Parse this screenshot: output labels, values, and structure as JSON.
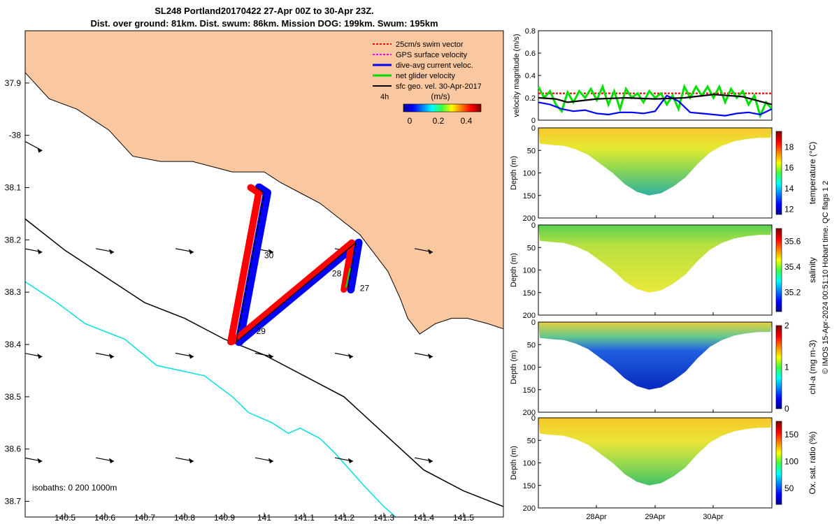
{
  "title": {
    "line1": "SL248 Portland20170422 27-Apr 00Z to 30-Apr 23Z.",
    "line2": "Dist. over ground: 81km. Dist. swum: 86km. Mission DOG: 199km. Swum: 195km"
  },
  "credit": "© IMOS 15-Apr-2024 00:51:10 Hobart time. QC flags 1  2",
  "colors": {
    "land": "#fac8a0",
    "swim_vector": "#ff0000",
    "gps_velocity": "#ff00ff",
    "dive_avg_current": "#0000ff",
    "net_glider_velocity": "#00e000",
    "sfc_geo_velocity": "#000000",
    "isobath_200": "#000000",
    "isobath_1000": "#00e0e0"
  },
  "chart_data": [
    {
      "type": "map",
      "xlim": [
        140.4,
        141.6
      ],
      "ylim": [
        -38.73,
        -37.8
      ],
      "x_ticks": [
        140.5,
        140.6,
        140.7,
        140.8,
        140.9,
        141.0,
        141.1,
        141.2,
        141.3,
        141.4,
        141.5
      ],
      "x_tick_labels": [
        "140.5",
        "140.6",
        "140.7",
        "140.8",
        "140.9",
        "141",
        "141.1",
        "141.2",
        "141.3",
        "141.4",
        "141.5"
      ],
      "y_ticks": [
        -37.9,
        -38.0,
        -38.1,
        -38.2,
        -38.3,
        -38.4,
        -38.5,
        -38.6,
        -38.7
      ],
      "y_tick_labels": [
        "37.9",
        "-38",
        "38.1",
        "38.2",
        "38.3",
        "38.4",
        "38.5",
        "38.6",
        "38.7"
      ],
      "legend": [
        {
          "label": "25cm/s swim vector",
          "color": "#ff0000"
        },
        {
          "label": "GPS surface velocity",
          "color": "#ff00ff"
        },
        {
          "label": "dive-avg current veloc.",
          "color": "#0000ff"
        },
        {
          "label": "net glider velocity",
          "color": "#00e000"
        },
        {
          "label": "sfc geo. vel. 30-Apr-2017",
          "color": "#000000"
        }
      ],
      "colorbar": {
        "label": "(m/s)",
        "tick_labels": [
          "0",
          "0.2",
          "0.4"
        ],
        "range": [
          0,
          0.5
        ]
      },
      "period_label": "4h",
      "isobath_label": "isobaths: 0   200  1000m",
      "day_labels": [
        {
          "text": "27",
          "lon": 141.24,
          "lat": -38.298
        },
        {
          "text": "28",
          "lon": 141.17,
          "lat": -38.27
        },
        {
          "text": "29",
          "lon": 140.98,
          "lat": -38.38
        },
        {
          "text": "30",
          "lon": 141.0,
          "lat": -38.235
        }
      ],
      "track": {
        "leg1": [
          [
            141.21,
            -38.295
          ],
          [
            141.23,
            -38.205
          ],
          [
            140.93,
            -38.395
          ]
        ],
        "leg2": [
          [
            140.93,
            -38.395
          ],
          [
            141.0,
            -38.11
          ],
          [
            140.98,
            -38.1
          ]
        ]
      },
      "coast": [
        [
          140.4,
          -37.88
        ],
        [
          140.46,
          -37.93
        ],
        [
          140.53,
          -37.95
        ],
        [
          140.61,
          -37.99
        ],
        [
          140.67,
          -38.04
        ],
        [
          140.74,
          -38.05
        ],
        [
          140.82,
          -38.05
        ],
        [
          140.87,
          -38.06
        ],
        [
          140.92,
          -38.07
        ],
        [
          140.96,
          -38.07
        ],
        [
          141.0,
          -38.07
        ],
        [
          141.04,
          -38.09
        ],
        [
          141.09,
          -38.11
        ],
        [
          141.14,
          -38.13
        ],
        [
          141.19,
          -38.16
        ],
        [
          141.24,
          -38.19
        ],
        [
          141.27,
          -38.22
        ],
        [
          141.31,
          -38.26
        ],
        [
          141.34,
          -38.31
        ],
        [
          141.36,
          -38.35
        ],
        [
          141.39,
          -38.38
        ],
        [
          141.43,
          -38.36
        ],
        [
          141.47,
          -38.35
        ],
        [
          141.51,
          -38.35
        ],
        [
          141.56,
          -38.36
        ],
        [
          141.6,
          -38.37
        ]
      ],
      "isobath_200": [
        [
          140.4,
          -38.16
        ],
        [
          140.5,
          -38.22
        ],
        [
          140.6,
          -38.27
        ],
        [
          140.7,
          -38.32
        ],
        [
          140.8,
          -38.35
        ],
        [
          140.9,
          -38.39
        ],
        [
          141.0,
          -38.42
        ],
        [
          141.1,
          -38.46
        ],
        [
          141.2,
          -38.5
        ],
        [
          141.3,
          -38.57
        ],
        [
          141.4,
          -38.64
        ],
        [
          141.5,
          -38.68
        ],
        [
          141.6,
          -38.71
        ]
      ],
      "isobath_1000": [
        [
          140.4,
          -38.28
        ],
        [
          140.48,
          -38.32
        ],
        [
          140.55,
          -38.36
        ],
        [
          140.65,
          -38.39
        ],
        [
          140.73,
          -38.44
        ],
        [
          140.85,
          -38.46
        ],
        [
          140.92,
          -38.5
        ],
        [
          140.96,
          -38.53
        ],
        [
          141.02,
          -38.55
        ],
        [
          141.06,
          -38.57
        ],
        [
          141.09,
          -38.56
        ],
        [
          141.14,
          -38.58
        ],
        [
          141.18,
          -38.61
        ],
        [
          141.25,
          -38.67
        ],
        [
          141.3,
          -38.71
        ],
        [
          141.36,
          -38.75
        ]
      ]
    },
    {
      "type": "line",
      "ylabel": "velocity magnitude (m/s)",
      "ylim": [
        0,
        0.8
      ],
      "y_ticks": [
        0,
        0.2,
        0.4,
        0.6,
        0.8
      ],
      "y_tick_labels": [
        "0",
        "0.2",
        "0.4",
        "0.6",
        "0.8"
      ],
      "xlim": [
        0,
        4
      ],
      "x_ticks": [
        1,
        2,
        3
      ],
      "x_tick_labels": [
        "28Apr",
        "29Apr",
        "30Apr"
      ],
      "series": [
        {
          "color": "#ff0000",
          "style": "dashed",
          "x": [
            0,
            4
          ],
          "y": [
            0.24,
            0.24
          ]
        },
        {
          "color": "#00e000",
          "x": [
            0,
            0.1,
            0.2,
            0.3,
            0.4,
            0.5,
            0.6,
            0.7,
            0.8,
            0.9,
            1.0,
            1.1,
            1.2,
            1.3,
            1.4,
            1.5,
            1.6,
            1.7,
            1.8,
            1.9,
            2.0,
            2.1,
            2.2,
            2.3,
            2.4,
            2.5,
            2.6,
            2.7,
            2.8,
            2.9,
            3.0,
            3.1,
            3.2,
            3.3,
            3.4,
            3.5,
            3.6,
            3.7,
            3.8,
            3.9,
            4.0
          ],
          "y": [
            0.3,
            0.2,
            0.26,
            0.14,
            0.08,
            0.25,
            0.16,
            0.26,
            0.2,
            0.28,
            0.18,
            0.3,
            0.14,
            0.26,
            0.1,
            0.28,
            0.2,
            0.24,
            0.16,
            0.26,
            0.2,
            0.24,
            0.14,
            0.22,
            0.1,
            0.3,
            0.2,
            0.3,
            0.22,
            0.3,
            0.2,
            0.3,
            0.16,
            0.28,
            0.2,
            0.26,
            0.14,
            0.22,
            0.04,
            0.16,
            0.1
          ]
        },
        {
          "color": "#0000ff",
          "x": [
            0,
            0.2,
            0.4,
            0.6,
            0.8,
            1.0,
            1.2,
            1.4,
            1.6,
            1.8,
            2.0,
            2.2,
            2.4,
            2.6,
            2.8,
            3.0,
            3.2,
            3.4,
            3.6,
            3.8,
            4.0
          ],
          "y": [
            0.16,
            0.14,
            0.1,
            0.08,
            0.09,
            0.06,
            0.05,
            0.07,
            0.07,
            0.06,
            0.08,
            0.22,
            0.17,
            0.07,
            0.06,
            0.05,
            0.04,
            0.06,
            0.07,
            0.05,
            0.1
          ]
        },
        {
          "color": "#000000",
          "x": [
            0,
            0.3,
            0.5,
            1.0,
            1.5,
            2.0,
            2.5,
            3.0,
            3.5,
            4.0
          ],
          "y": [
            0.2,
            0.19,
            0.16,
            0.19,
            0.2,
            0.19,
            0.2,
            0.23,
            0.21,
            0.14
          ]
        }
      ]
    },
    {
      "type": "heatmap",
      "ylabel": "Depth (m)",
      "ylim": [
        200,
        0
      ],
      "y_tick_labels": [
        "0",
        "50",
        "100",
        "150",
        "200"
      ],
      "colorbar": {
        "label": "temperature (°C)",
        "tick_labels": [
          "12",
          "14",
          "16",
          "18"
        ],
        "range": [
          11.5,
          19.5
        ]
      },
      "seabed_depth_m": [
        35,
        38,
        40,
        48,
        60,
        80,
        100,
        125,
        142,
        150,
        145,
        130,
        110,
        80,
        55,
        40,
        30,
        25,
        22,
        22
      ],
      "field": "warm near surface (~17-18.5°C), cooling to ~13-14°C near 120-150 m"
    },
    {
      "type": "heatmap",
      "ylabel": "Depth (m)",
      "ylim": [
        200,
        0
      ],
      "y_tick_labels": [
        "0",
        "50",
        "100",
        "150",
        "200"
      ],
      "colorbar": {
        "label": "salinity",
        "tick_labels": [
          "35.2",
          "35.4",
          "35.6"
        ],
        "range": [
          35.05,
          35.7
        ]
      },
      "seabed_depth_m": [
        35,
        38,
        40,
        48,
        60,
        80,
        100,
        125,
        142,
        150,
        145,
        130,
        110,
        80,
        55,
        40,
        30,
        25,
        22,
        22
      ],
      "field": "mostly ~35.35-35.45, fresher (~35.3) near surface"
    },
    {
      "type": "heatmap",
      "ylabel": "Depth (m)",
      "ylim": [
        200,
        0
      ],
      "y_tick_labels": [
        "0",
        "50",
        "100",
        "150",
        "200"
      ],
      "colorbar": {
        "label": "chl-a (mg m-3)",
        "tick_labels": [
          "0",
          "1",
          "2"
        ],
        "range": [
          0,
          2
        ]
      },
      "seabed_depth_m": [
        35,
        38,
        40,
        48,
        60,
        80,
        100,
        125,
        142,
        150,
        145,
        130,
        110,
        80,
        55,
        40,
        30,
        25,
        22,
        22
      ],
      "field": "~1-1.8 in upper 50 m with patches >1.8, near 0 below ~70 m"
    },
    {
      "type": "heatmap",
      "ylabel": "Depth (m)",
      "ylim": [
        200,
        0
      ],
      "y_tick_labels": [
        "0",
        "50",
        "100",
        "150",
        "200"
      ],
      "x_tick_labels": [
        "28Apr",
        "29Apr",
        "30Apr"
      ],
      "colorbar": {
        "label": "Ox. sat. ratio (%)",
        "tick_labels": [
          "50",
          "100",
          "150"
        ],
        "range": [
          20,
          175
        ]
      },
      "seabed_depth_m": [
        35,
        38,
        40,
        48,
        60,
        80,
        100,
        125,
        142,
        150,
        145,
        130,
        110,
        80,
        55,
        40,
        30,
        25,
        22,
        22
      ],
      "field": "~140-160% near surface, decreasing to ~100-110% near bottom"
    }
  ]
}
